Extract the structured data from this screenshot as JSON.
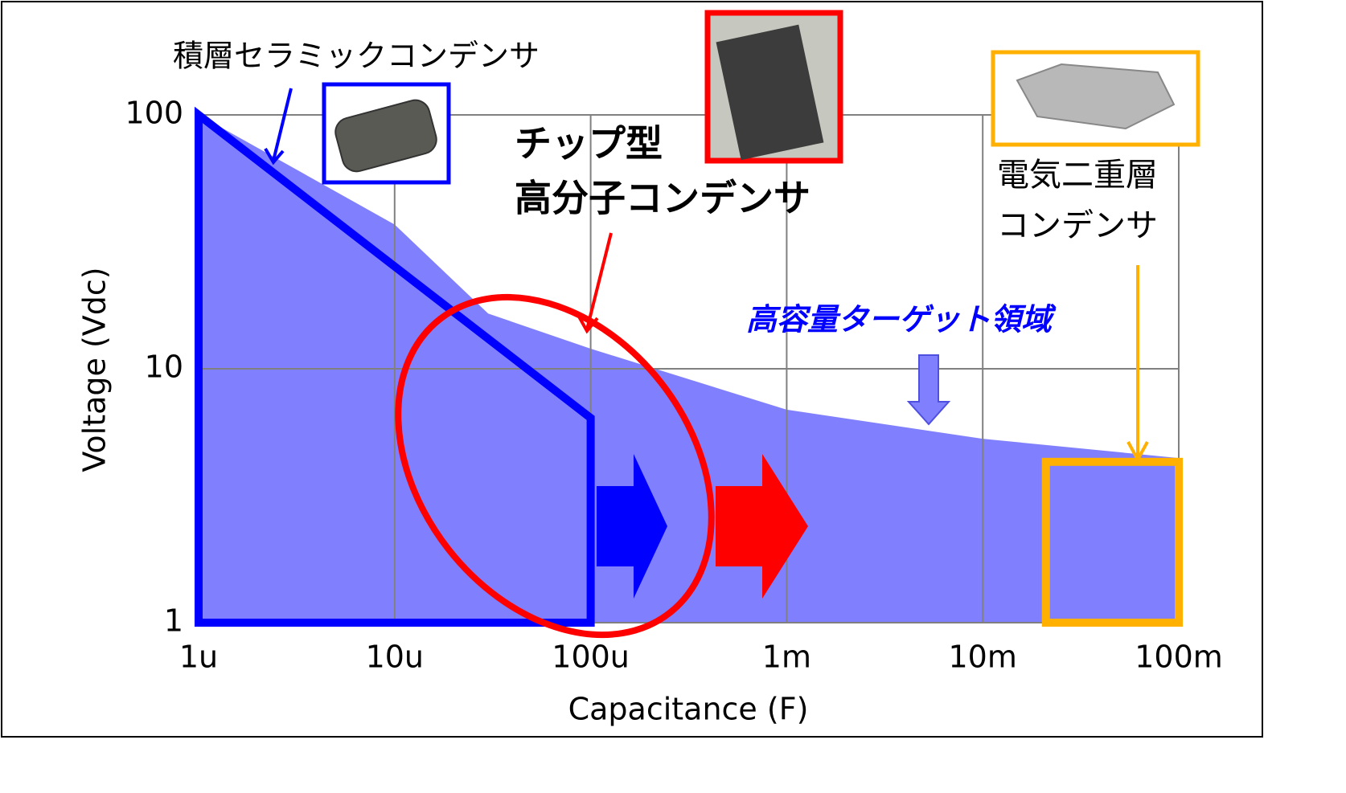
{
  "chart_data": {
    "type": "area",
    "xlabel": "Capacitance (F)",
    "ylabel": "Voltage (Vdc)",
    "xscale": "log",
    "yscale": "log",
    "xlim": [
      1e-06,
      0.1
    ],
    "ylim": [
      1,
      100
    ],
    "xticks": [
      {
        "value": 1e-06,
        "label": "1u"
      },
      {
        "value": 1e-05,
        "label": "10u"
      },
      {
        "value": 0.0001,
        "label": "100u"
      },
      {
        "value": 0.001,
        "label": "1m"
      },
      {
        "value": 0.01,
        "label": "10m"
      },
      {
        "value": 0.1,
        "label": "100m"
      }
    ],
    "yticks": [
      1,
      10,
      100
    ],
    "grid": true,
    "series": [
      {
        "name": "高容量ターゲット領域",
        "color": "#8080ff",
        "x": [
          1e-06,
          1e-05,
          3e-05,
          0.0001,
          0.001,
          0.01,
          0.1
        ],
        "values": [
          100,
          37,
          16.5,
          12,
          6.9,
          5.3,
          4.45
        ]
      },
      {
        "name": "積層セラミックコンデンサ",
        "color": "#0000ff",
        "x": [
          1e-06,
          0.0001,
          0.0001,
          1e-06
        ],
        "values": [
          100,
          6.4,
          1,
          1
        ]
      },
      {
        "name_lines": [
          "電気二重層",
          "コンデンサ"
        ],
        "color": "#ffb000",
        "x": [
          0.021,
          0.1
        ],
        "values": [
          1,
          4.3
        ]
      }
    ],
    "annotations": [
      {
        "lines": [
          "チップ型",
          "高分子コンデンサ"
        ],
        "color": "#ff0000"
      }
    ]
  }
}
